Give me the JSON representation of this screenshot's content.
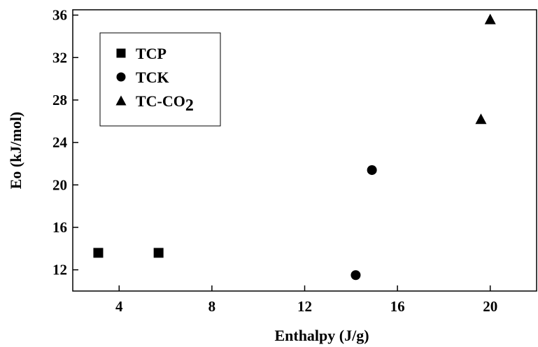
{
  "chart_data": {
    "type": "scatter",
    "title": "",
    "xlabel": "Enthalpy (J/g)",
    "ylabel": "Eo (kJ/mol)",
    "xlim": [
      2,
      22
    ],
    "ylim": [
      10,
      36.5
    ],
    "xticks": [
      "4",
      "8",
      "12",
      "16",
      "20"
    ],
    "yticks": [
      "12",
      "16",
      "20",
      "24",
      "28",
      "32",
      "36"
    ],
    "grid": false,
    "legend_position": "top-left",
    "series": [
      {
        "name": "TCP",
        "marker": "square",
        "color": "#000000",
        "points": [
          {
            "x": 3.1,
            "y": 13.6
          },
          {
            "x": 5.7,
            "y": 13.6
          }
        ]
      },
      {
        "name": "TCK",
        "marker": "circle",
        "color": "#000000",
        "points": [
          {
            "x": 14.9,
            "y": 21.4
          },
          {
            "x": 14.2,
            "y": 11.5
          }
        ]
      },
      {
        "name": "TC-CO",
        "name_subscript": "2",
        "marker": "triangle",
        "color": "#000000",
        "points": [
          {
            "x": 20.0,
            "y": 35.6
          },
          {
            "x": 19.6,
            "y": 26.2
          }
        ]
      }
    ]
  }
}
